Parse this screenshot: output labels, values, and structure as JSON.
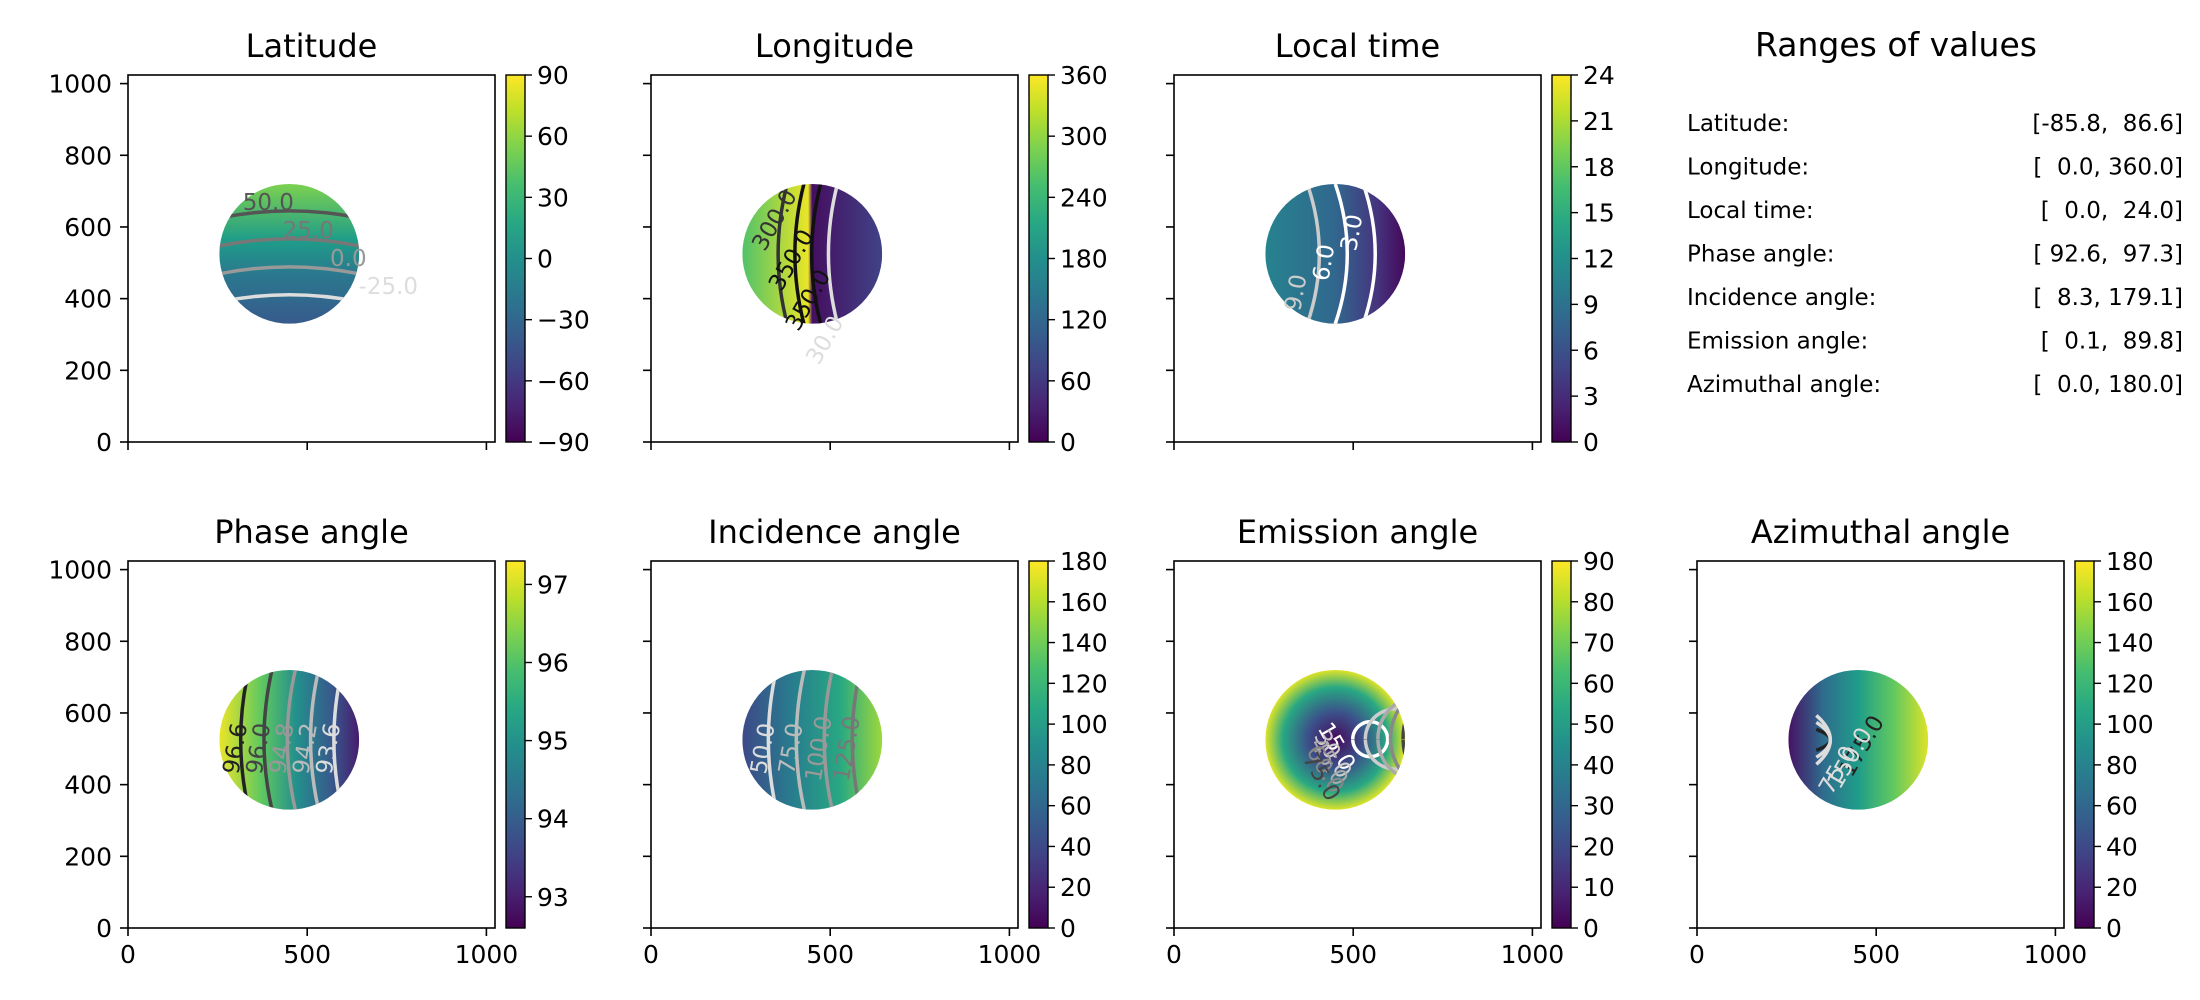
{
  "chart_data": [
    {
      "type": "heatmap",
      "title": "Latitude",
      "x_ticks": [
        0,
        500,
        1000
      ],
      "y_ticks": [
        0,
        200,
        400,
        600,
        800,
        1000
      ],
      "xlim": [
        0,
        1024
      ],
      "ylim": [
        0,
        1024
      ],
      "disk": {
        "center": [
          450,
          525
        ],
        "radius": 195
      },
      "colormap": "viridis",
      "colorbar": {
        "range": [
          -90,
          90
        ],
        "ticks": [
          90,
          60,
          30,
          0,
          -30,
          -60,
          -90
        ],
        "tick_labels": [
          "90",
          "60",
          "30",
          "0",
          "−30",
          "−60",
          "−90"
        ]
      },
      "field": {
        "kind": "latitude"
      },
      "contours": [
        {
          "label": "50.0",
          "color": "#555555"
        },
        {
          "label": "25.0",
          "color": "#777777"
        },
        {
          "label": "0.0",
          "color": "#999999"
        },
        {
          "label": "-25.0",
          "color": "#dddddd"
        }
      ]
    },
    {
      "type": "heatmap",
      "title": "Longitude",
      "x_ticks": [
        0,
        500,
        1000
      ],
      "y_ticks": [
        0,
        200,
        400,
        600,
        800,
        1000
      ],
      "xlim": [
        0,
        1024
      ],
      "ylim": [
        0,
        1024
      ],
      "disk": {
        "center": [
          450,
          525
        ],
        "radius": 195
      },
      "colormap": "viridis",
      "colorbar": {
        "range": [
          0,
          360
        ],
        "ticks": [
          360,
          300,
          240,
          180,
          120,
          60,
          0
        ],
        "tick_labels": [
          "360",
          "300",
          "240",
          "180",
          "120",
          "60",
          "0"
        ]
      },
      "field": {
        "kind": "longitude"
      },
      "contours": [
        {
          "label": "300.0",
          "color": "#333333"
        },
        {
          "label": "350.0",
          "color": "#111111"
        },
        {
          "label": "350.0",
          "color": "#111111"
        },
        {
          "label": "30.0",
          "color": "#dddddd"
        }
      ]
    },
    {
      "type": "heatmap",
      "title": "Local time",
      "x_ticks": [
        0,
        500,
        1000
      ],
      "y_ticks": [
        0,
        200,
        400,
        600,
        800,
        1000
      ],
      "xlim": [
        0,
        1024
      ],
      "ylim": [
        0,
        1024
      ],
      "disk": {
        "center": [
          450,
          525
        ],
        "radius": 195
      },
      "colormap": "viridis",
      "colorbar": {
        "range": [
          0,
          24
        ],
        "ticks": [
          24,
          21,
          18,
          15,
          12,
          9,
          6,
          3,
          0
        ],
        "tick_labels": [
          "24",
          "21",
          "18",
          "15",
          "12",
          "9",
          "6",
          "3",
          "0"
        ]
      },
      "field": {
        "kind": "localtime"
      },
      "contours": [
        {
          "label": "9.0",
          "color": "#cccccc"
        },
        {
          "label": "6.0",
          "color": "#ffffff"
        },
        {
          "label": "3.0",
          "color": "#ffffff"
        }
      ]
    },
    {
      "type": "heatmap",
      "title": "Phase angle",
      "x_ticks": [
        0,
        500,
        1000
      ],
      "y_ticks": [
        0,
        200,
        400,
        600,
        800,
        1000
      ],
      "xlim": [
        0,
        1024
      ],
      "ylim": [
        0,
        1024
      ],
      "disk": {
        "center": [
          450,
          525
        ],
        "radius": 195
      },
      "colormap": "viridis",
      "colorbar": {
        "range": [
          92.6,
          97.3
        ],
        "ticks": [
          97,
          96,
          95,
          94,
          93
        ],
        "tick_labels": [
          "97",
          "96",
          "95",
          "94",
          "93"
        ]
      },
      "field": {
        "kind": "phase"
      },
      "contours": [
        {
          "label": "96.6",
          "color": "#222222"
        },
        {
          "label": "96.0",
          "color": "#444444"
        },
        {
          "label": "94.8",
          "color": "#999999"
        },
        {
          "label": "94.2",
          "color": "#bbbbbb"
        },
        {
          "label": "93.6",
          "color": "#dddddd"
        }
      ]
    },
    {
      "type": "heatmap",
      "title": "Incidence angle",
      "x_ticks": [
        0,
        500,
        1000
      ],
      "y_ticks": [
        0,
        200,
        400,
        600,
        800,
        1000
      ],
      "xlim": [
        0,
        1024
      ],
      "ylim": [
        0,
        1024
      ],
      "disk": {
        "center": [
          450,
          525
        ],
        "radius": 195
      },
      "colormap": "viridis",
      "colorbar": {
        "range": [
          0,
          180
        ],
        "ticks": [
          180,
          160,
          140,
          120,
          100,
          80,
          60,
          40,
          20,
          0
        ],
        "tick_labels": [
          "180",
          "160",
          "140",
          "120",
          "100",
          "80",
          "60",
          "40",
          "20",
          "0"
        ]
      },
      "field": {
        "kind": "incidence"
      },
      "contours": [
        {
          "label": "50.0",
          "color": "#dddddd"
        },
        {
          "label": "75.0",
          "color": "#bbbbbb"
        },
        {
          "label": "100.0",
          "color": "#999999"
        },
        {
          "label": "125.0",
          "color": "#777777"
        }
      ]
    },
    {
      "type": "heatmap",
      "title": "Emission angle",
      "x_ticks": [
        0,
        500,
        1000
      ],
      "y_ticks": [
        0,
        200,
        400,
        600,
        800,
        1000
      ],
      "xlim": [
        0,
        1024
      ],
      "ylim": [
        0,
        1024
      ],
      "disk": {
        "center": [
          450,
          525
        ],
        "radius": 195
      },
      "colormap": "viridis",
      "colorbar": {
        "range": [
          0,
          90
        ],
        "ticks": [
          90,
          80,
          70,
          60,
          50,
          40,
          30,
          20,
          10,
          0
        ],
        "tick_labels": [
          "90",
          "80",
          "70",
          "60",
          "50",
          "40",
          "30",
          "20",
          "10",
          "0"
        ]
      },
      "field": {
        "kind": "emission"
      },
      "contours": [
        {
          "label": "15.0",
          "color": "#ffffff"
        },
        {
          "label": "30.0",
          "color": "#cccccc"
        },
        {
          "label": "45.0",
          "color": "#aaaaaa"
        },
        {
          "label": "60.0",
          "color": "#888888"
        },
        {
          "label": "75.0",
          "color": "#444444"
        }
      ]
    },
    {
      "type": "heatmap",
      "title": "Azimuthal angle",
      "x_ticks": [
        0,
        500,
        1000
      ],
      "y_ticks": [
        0,
        200,
        400,
        600,
        800,
        1000
      ],
      "xlim": [
        0,
        1024
      ],
      "ylim": [
        0,
        1024
      ],
      "disk": {
        "center": [
          450,
          525
        ],
        "radius": 195
      },
      "colormap": "viridis",
      "colorbar": {
        "range": [
          0,
          180
        ],
        "ticks": [
          180,
          160,
          140,
          120,
          100,
          80,
          60,
          40,
          20,
          0
        ],
        "tick_labels": [
          "180",
          "160",
          "140",
          "120",
          "100",
          "80",
          "60",
          "40",
          "20",
          "0"
        ]
      },
      "field": {
        "kind": "azimuth"
      },
      "contours": [
        {
          "label": "175.0",
          "color": "#222222"
        },
        {
          "label": "150.0",
          "color": "#dddddd"
        },
        {
          "label": "75.0",
          "color": "#dddddd"
        }
      ]
    }
  ],
  "ranges_panel": {
    "title": "Ranges of values",
    "rows": [
      {
        "name": "Latitude:",
        "range": "[-85.8,  86.6]"
      },
      {
        "name": "Longitude:",
        "range": "[  0.0, 360.0]"
      },
      {
        "name": "Local time:",
        "range": "[  0.0,  24.0]"
      },
      {
        "name": "Phase angle:",
        "range": "[ 92.6,  97.3]"
      },
      {
        "name": "Incidence angle:",
        "range": "[  8.3, 179.1]"
      },
      {
        "name": "Emission angle:",
        "range": "[  0.1,  89.8]"
      },
      {
        "name": "Azimuthal angle:",
        "range": "[  0.0, 180.0]"
      }
    ]
  }
}
